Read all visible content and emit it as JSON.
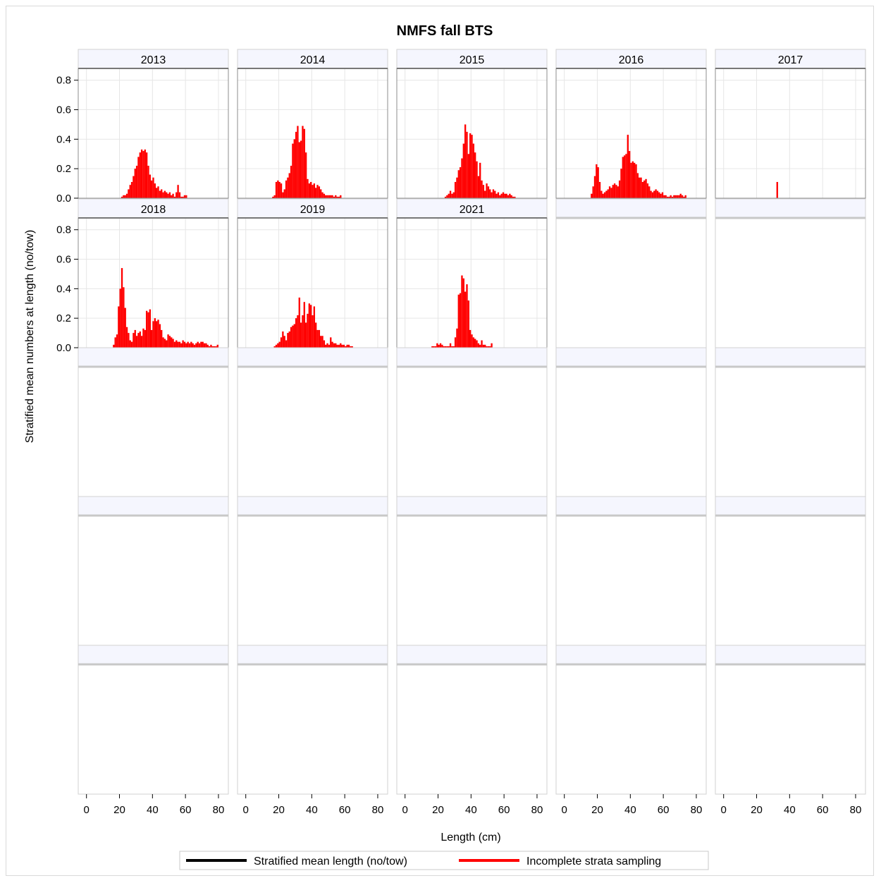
{
  "chart_data": {
    "type": "bar",
    "title": "NMFS fall BTS",
    "xlabel": "Length (cm)",
    "ylabel": "Stratified mean numbers at length (no/tow)",
    "xlim": [
      -5,
      86
    ],
    "ylim": [
      0,
      0.88
    ],
    "x_ticks": [
      0,
      20,
      40,
      60,
      80
    ],
    "y_ticks": [
      0.0,
      0.2,
      0.4,
      0.6,
      0.8
    ],
    "y_tick_labels": [
      "0.0",
      "0.2",
      "0.4",
      "0.6",
      "0.8"
    ],
    "grid": true,
    "layout": {
      "rows": 5,
      "cols": 5
    },
    "bin_start": 15,
    "bin_width": 1,
    "series_color": "#ff0000",
    "panels": [
      {
        "label": "2013",
        "start": 21,
        "values": [
          0.01,
          0.02,
          0.02,
          0.03,
          0.06,
          0.09,
          0.11,
          0.15,
          0.2,
          0.22,
          0.28,
          0.31,
          0.33,
          0.32,
          0.33,
          0.31,
          0.22,
          0.16,
          0.12,
          0.14,
          0.1,
          0.07,
          0.08,
          0.05,
          0.06,
          0.04,
          0.05,
          0.04,
          0.03,
          0.04,
          0.02,
          0.03,
          0.01,
          0.04,
          0.09,
          0.04,
          0.01,
          0.01,
          0.02,
          0.02
        ]
      },
      {
        "label": "2014",
        "start": 16,
        "values": [
          0.01,
          0.02,
          0.11,
          0.12,
          0.11,
          0.1,
          0.04,
          0.06,
          0.12,
          0.14,
          0.17,
          0.22,
          0.37,
          0.4,
          0.45,
          0.49,
          0.38,
          0.39,
          0.49,
          0.47,
          0.31,
          0.13,
          0.1,
          0.11,
          0.09,
          0.1,
          0.07,
          0.09,
          0.08,
          0.06,
          0.04,
          0.03,
          0.02,
          0.02,
          0.02,
          0.02,
          0.02,
          0.01,
          0.02,
          0.01,
          0.01,
          0.02
        ]
      },
      {
        "label": "2015",
        "start": 24,
        "values": [
          0.01,
          0.02,
          0.03,
          0.05,
          0.03,
          0.04,
          0.11,
          0.14,
          0.19,
          0.21,
          0.27,
          0.37,
          0.5,
          0.45,
          0.3,
          0.44,
          0.43,
          0.37,
          0.31,
          0.25,
          0.15,
          0.24,
          0.12,
          0.09,
          0.05,
          0.1,
          0.08,
          0.06,
          0.04,
          0.06,
          0.05,
          0.03,
          0.04,
          0.02,
          0.03,
          0.04,
          0.03,
          0.03,
          0.02,
          0.03,
          0.02,
          0.01,
          0.01
        ]
      },
      {
        "label": "2016",
        "start": 16,
        "values": [
          0.03,
          0.08,
          0.15,
          0.23,
          0.21,
          0.11,
          0.05,
          0.03,
          0.04,
          0.05,
          0.06,
          0.08,
          0.07,
          0.09,
          0.1,
          0.09,
          0.08,
          0.12,
          0.2,
          0.28,
          0.29,
          0.3,
          0.43,
          0.32,
          0.24,
          0.25,
          0.24,
          0.23,
          0.17,
          0.14,
          0.14,
          0.11,
          0.12,
          0.13,
          0.1,
          0.08,
          0.05,
          0.04,
          0.05,
          0.06,
          0.05,
          0.04,
          0.03,
          0.04,
          0.02,
          0.02,
          0.01,
          0.01,
          0.02,
          0.01,
          0.02,
          0.02,
          0.02,
          0.02,
          0.03,
          0.02,
          0.01,
          0.02
        ]
      },
      {
        "label": "2017",
        "start": 32,
        "values": [
          0.11
        ]
      },
      {
        "label": "2018",
        "start": 16,
        "values": [
          0.02,
          0.07,
          0.09,
          0.28,
          0.4,
          0.54,
          0.41,
          0.27,
          0.14,
          0.1,
          0.05,
          0.04,
          0.1,
          0.12,
          0.08,
          0.1,
          0.11,
          0.08,
          0.13,
          0.12,
          0.25,
          0.24,
          0.26,
          0.12,
          0.18,
          0.2,
          0.18,
          0.19,
          0.16,
          0.12,
          0.07,
          0.06,
          0.05,
          0.09,
          0.08,
          0.07,
          0.06,
          0.04,
          0.05,
          0.04,
          0.04,
          0.03,
          0.05,
          0.04,
          0.03,
          0.04,
          0.03,
          0.04,
          0.03,
          0.02,
          0.03,
          0.04,
          0.03,
          0.04,
          0.04,
          0.03,
          0.03,
          0.02,
          0.01,
          0.02,
          0.01,
          0.01,
          0.01,
          0.02
        ]
      },
      {
        "label": "2019",
        "start": 17,
        "values": [
          0.01,
          0.02,
          0.03,
          0.04,
          0.07,
          0.11,
          0.08,
          0.05,
          0.1,
          0.11,
          0.14,
          0.15,
          0.16,
          0.2,
          0.22,
          0.34,
          0.17,
          0.22,
          0.31,
          0.17,
          0.23,
          0.3,
          0.29,
          0.22,
          0.28,
          0.17,
          0.12,
          0.12,
          0.08,
          0.08,
          0.05,
          0.02,
          0.03,
          0.02,
          0.07,
          0.04,
          0.03,
          0.03,
          0.02,
          0.02,
          0.03,
          0.02,
          0.02,
          0.01,
          0.02,
          0.02,
          0.01,
          0.01
        ]
      },
      {
        "label": "2021",
        "start": 16,
        "values": [
          0.01,
          0.01,
          0.01,
          0.03,
          0.02,
          0.03,
          0.02,
          0.01,
          0.01,
          0.01,
          0.01,
          0.03,
          0.01,
          0.01,
          0.07,
          0.13,
          0.36,
          0.37,
          0.49,
          0.47,
          0.38,
          0.43,
          0.32,
          0.12,
          0.09,
          0.07,
          0.06,
          0.05,
          0.03,
          0.02,
          0.05,
          0.02,
          0.02,
          0.01,
          0.01,
          0.01,
          0.03
        ]
      }
    ],
    "legend": {
      "placement": "bottom",
      "entries": [
        {
          "name": "Stratified mean length (no/tow)",
          "color": "#000000"
        },
        {
          "name": "Incomplete strata sampling",
          "color": "#ff0000"
        }
      ]
    }
  }
}
